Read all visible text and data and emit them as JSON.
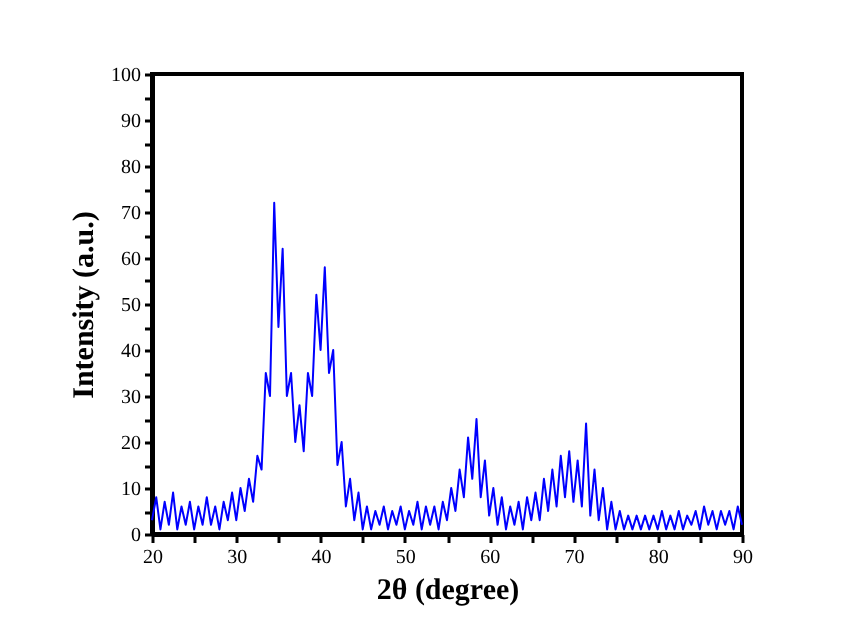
{
  "chart_data": {
    "type": "line",
    "xlabel": "2θ (degree)",
    "ylabel": "Intensity (a.u.)",
    "xlim": [
      20,
      90
    ],
    "ylim": [
      0,
      100
    ],
    "xticks": [
      20,
      {
        "value": 25,
        "label": null
      },
      30,
      {
        "value": 35,
        "label": null
      },
      40,
      {
        "value": 45,
        "label": null
      },
      50,
      {
        "value": 55,
        "label": null
      },
      60,
      {
        "value": 65,
        "label": null
      },
      70,
      {
        "value": 75,
        "label": null
      },
      80,
      {
        "value": 85,
        "label": null
      },
      90
    ],
    "yticks": [
      0,
      {
        "value": 5,
        "label": null
      },
      10,
      {
        "value": 15,
        "label": null
      },
      20,
      {
        "value": 25,
        "label": null
      },
      30,
      {
        "value": 35,
        "label": null
      },
      40,
      {
        "value": 45,
        "label": null
      },
      50,
      {
        "value": 55,
        "label": null
      },
      60,
      {
        "value": 65,
        "label": null
      },
      70,
      {
        "value": 75,
        "label": null
      },
      80,
      {
        "value": 85,
        "label": null
      },
      90,
      {
        "value": 95,
        "label": null
      },
      100
    ],
    "grid": false,
    "series": [
      {
        "color": "#0000ff",
        "x": [
          20,
          20.5,
          21,
          21.5,
          22,
          22.5,
          23,
          23.5,
          24,
          24.5,
          25,
          25.5,
          26,
          26.5,
          27,
          27.5,
          28,
          28.5,
          29,
          29.5,
          30,
          30.5,
          31,
          31.5,
          32,
          32.5,
          33,
          33.5,
          34,
          34.5,
          35,
          35.5,
          36,
          36.5,
          37,
          37.5,
          38,
          38.5,
          39,
          39.5,
          40,
          40.5,
          41,
          41.5,
          42,
          42.5,
          43,
          43.5,
          44,
          44.5,
          45,
          45.5,
          46,
          46.5,
          47,
          47.5,
          48,
          48.5,
          49,
          49.5,
          50,
          50.5,
          51,
          51.5,
          52,
          52.5,
          53,
          53.5,
          54,
          54.5,
          55,
          55.5,
          56,
          56.5,
          57,
          57.5,
          58,
          58.5,
          59,
          59.5,
          60,
          60.5,
          61,
          61.5,
          62,
          62.5,
          63,
          63.5,
          64,
          64.5,
          65,
          65.5,
          66,
          66.5,
          67,
          67.5,
          68,
          68.5,
          69,
          69.5,
          70,
          70.5,
          71,
          71.5,
          72,
          72.5,
          73,
          73.5,
          74,
          74.5,
          75,
          75.5,
          76,
          76.5,
          77,
          77.5,
          78,
          78.5,
          79,
          79.5,
          80,
          80.5,
          81,
          81.5,
          82,
          82.5,
          83,
          83.5,
          84,
          84.5,
          85,
          85.5,
          86,
          86.5,
          87,
          87.5,
          88,
          88.5,
          89,
          89.5,
          90
        ],
        "values": [
          3,
          8,
          1,
          7,
          2,
          9,
          1,
          6,
          2,
          7,
          1,
          6,
          2,
          8,
          2,
          6,
          1,
          7,
          3,
          9,
          3,
          10,
          5,
          12,
          7,
          17,
          14,
          35,
          30,
          72,
          45,
          62,
          30,
          35,
          20,
          28,
          18,
          35,
          30,
          52,
          40,
          58,
          35,
          40,
          15,
          20,
          6,
          12,
          3,
          9,
          1,
          6,
          1,
          5,
          2,
          6,
          1,
          5,
          2,
          6,
          1,
          5,
          2,
          7,
          1,
          6,
          2,
          6,
          1,
          7,
          3,
          10,
          5,
          14,
          8,
          21,
          12,
          25,
          8,
          16,
          4,
          10,
          2,
          8,
          1,
          6,
          2,
          7,
          1,
          8,
          3,
          9,
          3,
          12,
          5,
          14,
          6,
          17,
          8,
          18,
          7,
          16,
          6,
          24,
          4,
          14,
          3,
          10,
          1,
          7,
          1,
          5,
          1,
          4,
          1,
          4,
          1,
          4,
          1,
          4,
          1,
          5,
          1,
          4,
          1,
          5,
          1,
          4,
          2,
          5,
          1,
          6,
          2,
          5,
          1,
          5,
          2,
          5,
          1,
          6,
          2
        ]
      }
    ]
  }
}
